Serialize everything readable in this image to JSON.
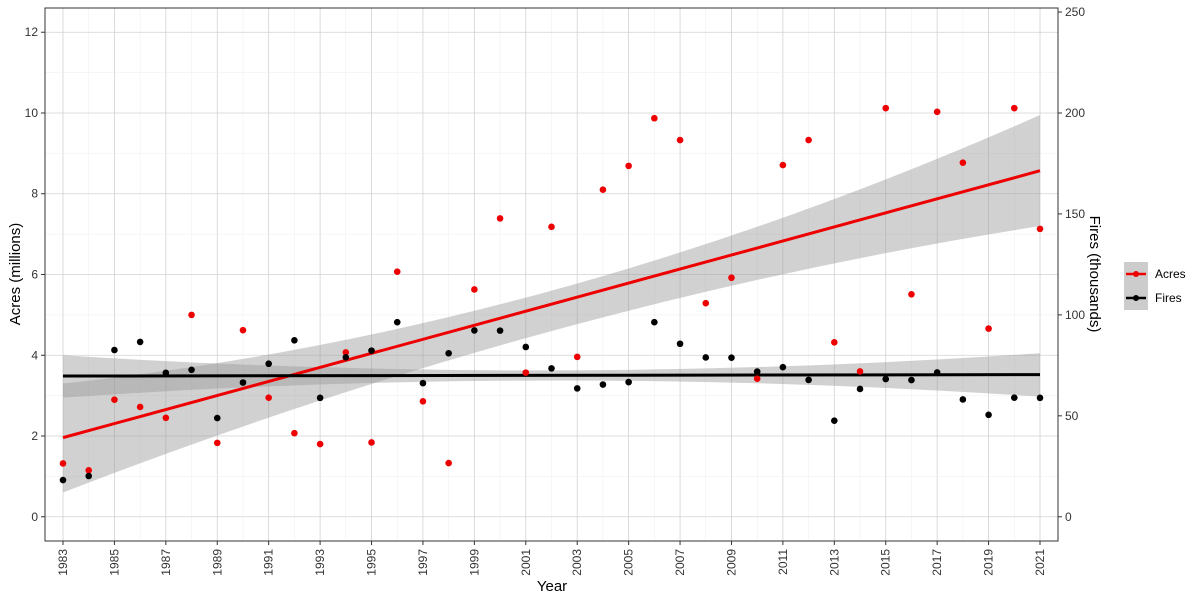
{
  "chart_data": {
    "type": "scatter",
    "title": "",
    "xlabel": "Year",
    "ylabel": "Acres (millions)",
    "y2label": "Fires (thousands)",
    "xlim": [
      1982.3,
      2021.7
    ],
    "ylim": [
      -0.6,
      12.6
    ],
    "y2lim": [
      -12,
      252
    ],
    "x_ticks": [
      1983,
      1985,
      1987,
      1989,
      1991,
      1993,
      1995,
      1997,
      1999,
      2001,
      2003,
      2005,
      2007,
      2009,
      2011,
      2013,
      2015,
      2017,
      2019,
      2021
    ],
    "y_ticks": [
      0,
      2,
      4,
      6,
      8,
      10,
      12
    ],
    "y2_ticks": [
      0,
      50,
      100,
      150,
      200,
      250
    ],
    "grid": true,
    "legend_position": "right",
    "colors": {
      "acres": "#ee0000",
      "fires": "#000000",
      "ribbon": "#999999"
    },
    "series": [
      {
        "name": "Acres",
        "axis": "left",
        "color": "#ee0000",
        "x": [
          1983,
          1984,
          1985,
          1986,
          1987,
          1988,
          1989,
          1990,
          1991,
          1992,
          1993,
          1994,
          1995,
          1996,
          1997,
          1998,
          1999,
          2000,
          2001,
          2002,
          2003,
          2004,
          2005,
          2006,
          2007,
          2008,
          2009,
          2010,
          2011,
          2012,
          2013,
          2014,
          2015,
          2016,
          2017,
          2018,
          2019,
          2020,
          2021
        ],
        "values": [
          1.32,
          1.15,
          2.9,
          2.72,
          2.45,
          5.0,
          1.83,
          4.62,
          2.95,
          2.07,
          1.8,
          4.07,
          1.84,
          6.07,
          2.86,
          1.33,
          5.63,
          7.39,
          3.57,
          7.18,
          3.96,
          8.1,
          8.69,
          9.87,
          9.33,
          5.29,
          5.92,
          3.42,
          8.71,
          9.33,
          4.32,
          3.6,
          10.12,
          5.51,
          10.03,
          8.77,
          4.66,
          10.12,
          7.13
        ],
        "trend": {
          "start": 1.96,
          "end": 8.57,
          "band_start": [
            0.6,
            3.3
          ],
          "band_mid": [
            4.6,
            5.6
          ],
          "band_end": [
            7.2,
            9.95
          ]
        }
      },
      {
        "name": "Fires",
        "axis": "right",
        "color": "#000000",
        "x": [
          1983,
          1984,
          1985,
          1986,
          1987,
          1988,
          1989,
          1990,
          1991,
          1992,
          1993,
          1994,
          1995,
          1996,
          1997,
          1998,
          1999,
          2000,
          2001,
          2002,
          2003,
          2004,
          2005,
          2006,
          2007,
          2008,
          2009,
          2010,
          2011,
          2012,
          2013,
          2014,
          2015,
          2016,
          2017,
          2018,
          2019,
          2020,
          2021
        ],
        "values": [
          18.2,
          20.2,
          82.6,
          86.6,
          71.3,
          72.8,
          48.9,
          66.5,
          75.8,
          87.4,
          58.9,
          79.0,
          82.3,
          96.4,
          66.2,
          81.0,
          92.3,
          92.2,
          84.1,
          73.5,
          63.6,
          65.5,
          66.7,
          96.4,
          85.7,
          78.9,
          78.8,
          71.9,
          74.1,
          67.8,
          47.6,
          63.3,
          68.2,
          67.7,
          71.5,
          58.1,
          50.5,
          59.0,
          58.9
        ],
        "trend": {
          "start": 69.7,
          "end": 70.4,
          "band_start": [
            59.0,
            80.0
          ],
          "band_mid": [
            67.5,
            72.5
          ],
          "band_end": [
            59.5,
            81.0
          ]
        }
      }
    ]
  }
}
